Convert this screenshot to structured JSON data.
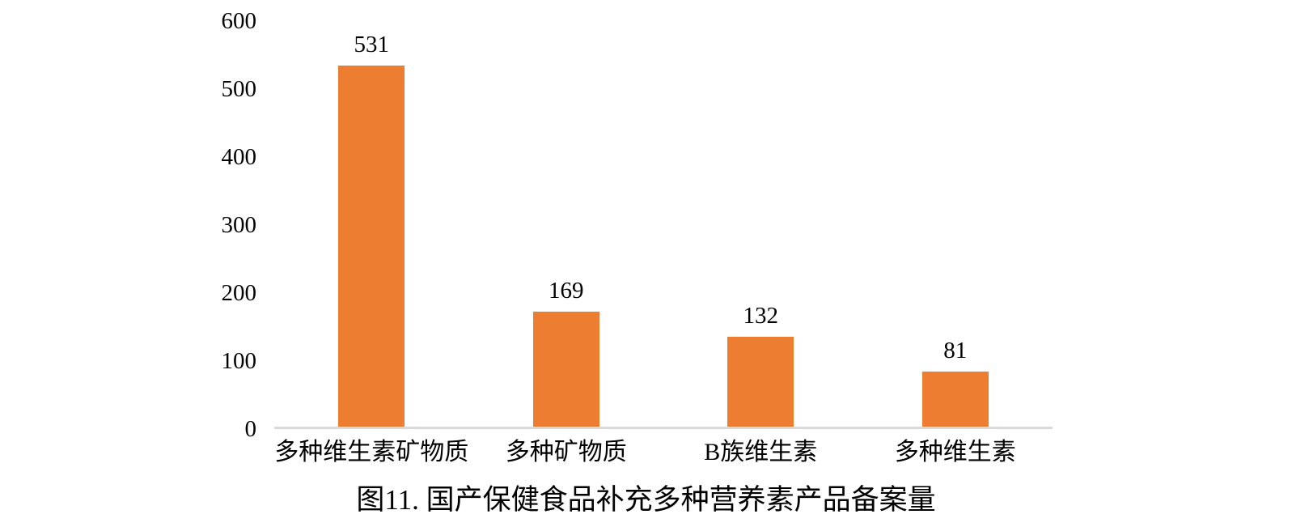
{
  "chart_data": {
    "type": "bar",
    "title": "图11. 国产保健食品补充多种营养素产品备案量",
    "categories": [
      "多种维生素矿物质",
      "多种矿物质",
      "B族维生素",
      "多种维生素"
    ],
    "values": [
      531,
      169,
      132,
      81
    ],
    "data_labels": [
      "531",
      "169",
      "132",
      "81"
    ],
    "xlabel": "",
    "ylabel": "",
    "ylim": [
      0,
      600
    ],
    "yticks": [
      0,
      100,
      200,
      300,
      400,
      500,
      600
    ],
    "grid": false,
    "legend_position": "none",
    "colors": {
      "bar": "#ED7D31",
      "axis_line": "#D9D9D9",
      "text": "#000000"
    }
  }
}
